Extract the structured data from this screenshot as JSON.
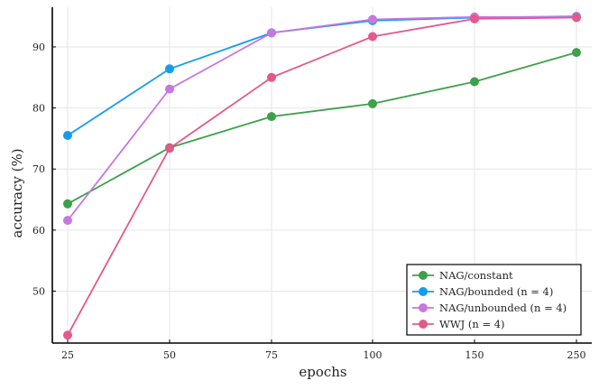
{
  "chart_data": {
    "type": "line",
    "title": "",
    "xlabel": "epochs",
    "ylabel": "accuracy (%)",
    "categories": [
      "25",
      "50",
      "75",
      "100",
      "150",
      "250"
    ],
    "ylim": [
      41.5,
      96.5
    ],
    "yticks": [
      50,
      60,
      70,
      80,
      90
    ],
    "grid": true,
    "legend_position": "bottom-right",
    "series": [
      {
        "name": "NAG/constant",
        "color": "#3ea04a",
        "values": [
          64.3,
          73.5,
          78.6,
          80.7,
          84.3,
          89.1
        ]
      },
      {
        "name": "NAG/bounded (n = 4)",
        "color": "#139bf0",
        "values": [
          75.5,
          86.4,
          92.3,
          94.3,
          94.8,
          95.0
        ]
      },
      {
        "name": "NAG/unbounded (n = 4)",
        "color": "#c678dd",
        "values": [
          61.6,
          83.1,
          92.3,
          94.5,
          94.9,
          94.9
        ]
      },
      {
        "name": "WWJ (n = 4)",
        "color": "#e4588b",
        "values": [
          42.8,
          73.4,
          85.0,
          91.7,
          94.6,
          94.8
        ]
      }
    ]
  }
}
